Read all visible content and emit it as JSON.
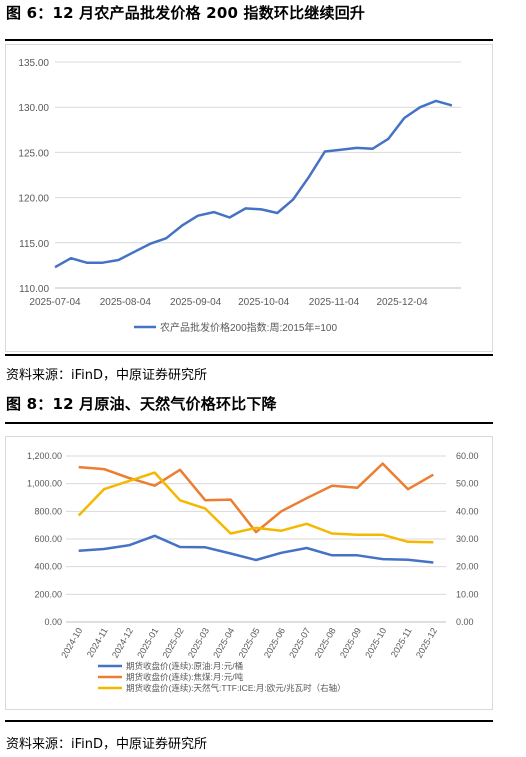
{
  "figure1": {
    "title": "图 6：12 月农产品批发价格 200 指数环比继续回升",
    "source": "资料来源：iFinD，中原证券研究所"
  },
  "figure2": {
    "title": "图 8：12 月原油、天然气价格环比下降",
    "source": "资料来源：iFinD，中原证券研究所"
  },
  "colors": {
    "blue": "#4472c4",
    "orange": "#ed7d31",
    "yellow": "#f5b800",
    "grid": "#d9d9d9",
    "axis_text": "#595959"
  },
  "chart_data": [
    {
      "type": "line",
      "title": "",
      "xlabel": "",
      "ylabel": "",
      "ylim": [
        110,
        135
      ],
      "yticks": [
        "110.00",
        "115.00",
        "120.00",
        "125.00",
        "130.00",
        "135.00"
      ],
      "xticks": [
        "2025-07-04",
        "2025-08-04",
        "2025-09-04",
        "2025-10-04",
        "2025-11-04",
        "2025-12-04"
      ],
      "x": [
        "2025-07-04",
        "2025-07-11",
        "2025-07-18",
        "2025-07-25",
        "2025-08-01",
        "2025-08-08",
        "2025-08-15",
        "2025-08-22",
        "2025-08-29",
        "2025-09-05",
        "2025-09-12",
        "2025-09-19",
        "2025-09-26",
        "2025-10-03",
        "2025-10-10",
        "2025-10-17",
        "2025-10-24",
        "2025-10-31",
        "2025-11-07",
        "2025-11-14",
        "2025-11-21",
        "2025-11-28",
        "2025-12-05",
        "2025-12-12",
        "2025-12-19",
        "2025-12-26"
      ],
      "series": [
        {
          "name": "农产品批发价格200指数:周:2015年=100",
          "values": [
            112.3,
            113.3,
            112.8,
            112.8,
            113.1,
            114.0,
            114.9,
            115.5,
            116.9,
            118.0,
            118.4,
            117.8,
            118.8,
            118.7,
            118.3,
            119.8,
            122.3,
            125.1,
            125.3,
            125.5,
            125.4,
            126.5,
            128.8,
            130.0,
            130.7,
            130.2
          ]
        }
      ],
      "legend": "bottom",
      "grid": true
    },
    {
      "type": "line",
      "title": "",
      "xlabel": "",
      "ylabel": "",
      "categories": [
        "2024-10",
        "2024-11",
        "2024-12",
        "2025-01",
        "2025-02",
        "2025-03",
        "2025-04",
        "2025-05",
        "2025-06",
        "2025-07",
        "2025-08",
        "2025-09",
        "2025-10",
        "2025-11",
        "2025-12"
      ],
      "ylim_left": [
        0,
        1200
      ],
      "ylim_right": [
        0,
        60
      ],
      "yticks_left": [
        "0.00",
        "200.00",
        "400.00",
        "600.00",
        "800.00",
        "1,000.00",
        "1,200.00"
      ],
      "yticks_right": [
        "0.00",
        "10.00",
        "20.00",
        "30.00",
        "40.00",
        "50.00",
        "60.00"
      ],
      "series": [
        {
          "name": "期货收盘价(连续):原油:月:元/桶",
          "axis": "left",
          "values": [
            515,
            528,
            555,
            623,
            542,
            540,
            495,
            448,
            500,
            535,
            482,
            482,
            455,
            450,
            430
          ]
        },
        {
          "name": "期货收盘价(连续):焦煤:月:元/吨",
          "axis": "left",
          "values": [
            1120,
            1105,
            1040,
            985,
            1100,
            880,
            885,
            650,
            800,
            895,
            985,
            970,
            1145,
            960,
            1065
          ]
        },
        {
          "name": "期货收盘价(连续):天然气:TTF:ICE:月:欧元/兆瓦时（右轴）",
          "axis": "right",
          "values": [
            38.5,
            48,
            51,
            54,
            44,
            41,
            32,
            34,
            33,
            35.5,
            32,
            31.5,
            31.5,
            29,
            28.8
          ]
        }
      ],
      "legend": "bottom-left",
      "grid": true
    }
  ]
}
